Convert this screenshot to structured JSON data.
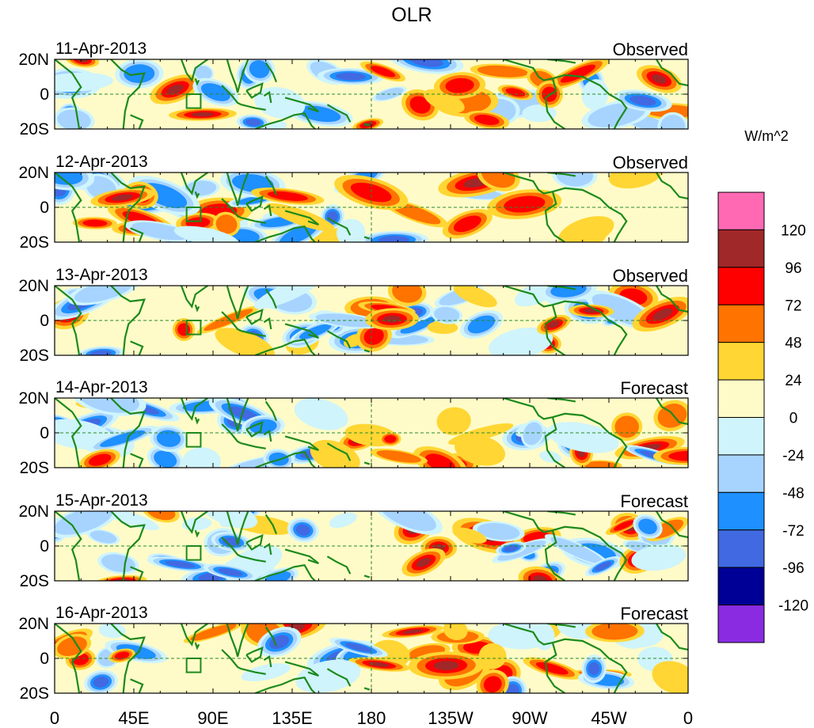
{
  "chart_data": {
    "type": "heatmap",
    "title": "OLR",
    "units": "W/m^2",
    "x_ticks": [
      "0",
      "45E",
      "90E",
      "135E",
      "180",
      "135W",
      "90W",
      "45W",
      "0"
    ],
    "x_tick_lons": [
      0,
      45,
      90,
      135,
      180,
      225,
      270,
      315,
      360
    ],
    "y_ticks": [
      "20N",
      "0",
      "20S"
    ],
    "y_tick_lats": [
      20,
      0,
      -20
    ],
    "lon_range": [
      0,
      360
    ],
    "lat_range": [
      -20,
      20
    ],
    "colorbar": {
      "labels": [
        "120",
        "96",
        "72",
        "48",
        "24",
        "0",
        "-24",
        "-48",
        "-72",
        "-96",
        "-120"
      ],
      "colors": [
        "#ff69b4",
        "#a02828",
        "#ff0000",
        "#ff7300",
        "#ffd633",
        "#fffbc8",
        "#cff4fb",
        "#a7d4ff",
        "#1e90ff",
        "#4169e1",
        "#000096",
        "#8a2be2"
      ]
    },
    "panels": [
      {
        "date": "11-Apr-2013",
        "type": "Observed"
      },
      {
        "date": "12-Apr-2013",
        "type": "Observed"
      },
      {
        "date": "13-Apr-2013",
        "type": "Observed"
      },
      {
        "date": "14-Apr-2013",
        "type": "Forecast"
      },
      {
        "date": "15-Apr-2013",
        "type": "Forecast"
      },
      {
        "date": "16-Apr-2013",
        "type": "Forecast"
      }
    ]
  }
}
